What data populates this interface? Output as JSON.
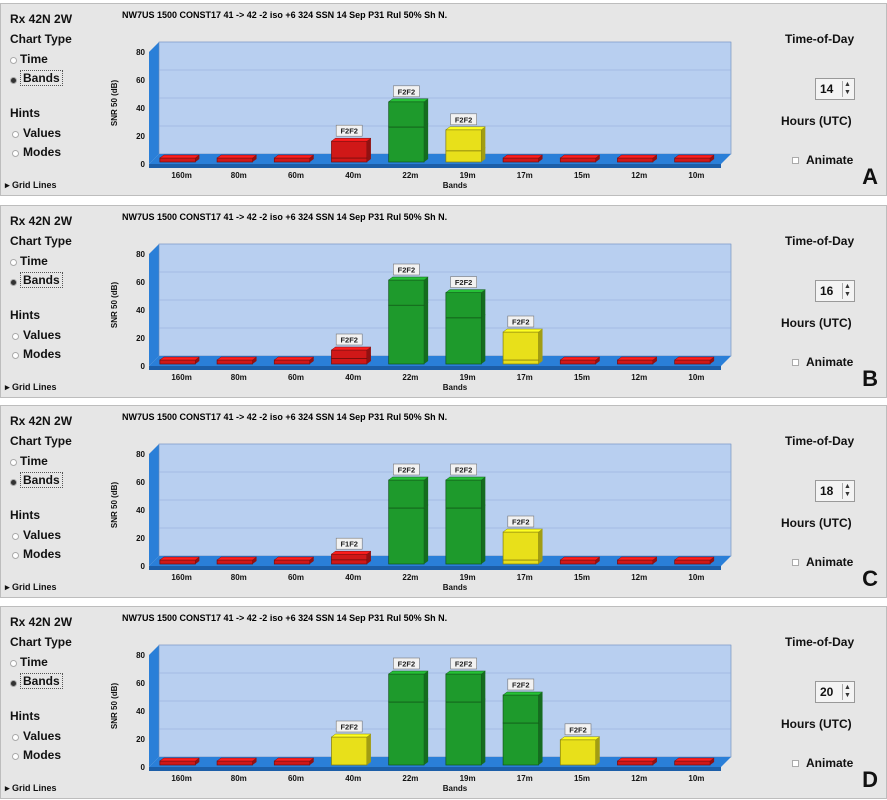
{
  "bands": [
    "160m",
    "80m",
    "60m",
    "40m",
    "22m",
    "19m",
    "17m",
    "15m",
    "12m",
    "10m"
  ],
  "labels": {
    "rx": "Rx 42N 2W",
    "chart_type": "Chart Type",
    "time": "Time",
    "bands_opt": "Bands",
    "hints": "Hints",
    "values": "Values",
    "modes": "Modes",
    "grid_lines": "Grid Lines",
    "time_of_day": "Time-of-Day",
    "hours_utc": "Hours (UTC)",
    "animate": "Animate",
    "xlabel": "Bands",
    "ylabel": "SNR 50 (dB)",
    "y_ticks": [
      "0",
      "20",
      "40",
      "60",
      "80"
    ]
  },
  "panels": [
    {
      "letter": "A",
      "hour": "14",
      "title": "NW7US 1500 CONST17 41 -> 42 -2 iso +6 324 SSN 14 Sep P31 Rul 50% Sh N."
    },
    {
      "letter": "B",
      "hour": "16",
      "title": "NW7US 1500 CONST17 41 -> 42 -2 iso +6 324 SSN 14 Sep P31 Rul 50% Sh N."
    },
    {
      "letter": "C",
      "hour": "18",
      "title": "NW7US 1500 CONST17 41 -> 42 -2 iso +6 324 SSN 14 Sep P31 Rul 50% Sh N."
    },
    {
      "letter": "D",
      "hour": "20",
      "title": "NW7US 1500 CONST17 41 -> 42 -2 iso +6 324 SSN 14 Sep P31 Rul 50% Sh N."
    }
  ],
  "colors": {
    "red": "#d01818",
    "green": "#1e9a2c",
    "yellow": "#e8e01a",
    "plot_bg": "#b8cff0",
    "floor": "#2a7fd8"
  },
  "chart_data": [
    {
      "type": "bar",
      "title": "NW7US 1500 CONST17 41 -> 42 -2 iso +6 324 SSN 14 Sep P31 Rul 50% Sh N.",
      "xlabel": "Bands",
      "ylabel": "SNR 50 (dB)",
      "ylim": [
        0,
        80
      ],
      "categories": [
        "160m",
        "80m",
        "60m",
        "40m",
        "22m",
        "19m",
        "17m",
        "15m",
        "12m",
        "10m"
      ],
      "series": [
        {
          "values": [
            2,
            2,
            2,
            2,
            25,
            8,
            2,
            2,
            2,
            2
          ]
        },
        {
          "values": [
            0,
            0,
            0,
            12,
            18,
            15,
            0,
            0,
            0,
            0
          ]
        }
      ],
      "colors": [
        "red",
        "red",
        "red",
        "red",
        "green",
        "yellow",
        "red",
        "red",
        "red",
        "red"
      ],
      "hints": [
        "",
        "",
        "",
        "F2F2",
        "F2F2",
        "F2F2",
        "",
        "",
        "",
        ""
      ]
    },
    {
      "type": "bar",
      "title": "NW7US 1500 CONST17 41 -> 42 -2 iso +6 324 SSN 14 Sep P31 Rul 50% Sh N.",
      "xlabel": "Bands",
      "ylabel": "SNR 50 (dB)",
      "ylim": [
        0,
        80
      ],
      "categories": [
        "160m",
        "80m",
        "60m",
        "40m",
        "22m",
        "19m",
        "17m",
        "15m",
        "12m",
        "10m"
      ],
      "series": [
        {
          "values": [
            2,
            2,
            2,
            4,
            42,
            33,
            2,
            2,
            2,
            2
          ]
        },
        {
          "values": [
            0,
            0,
            0,
            6,
            18,
            18,
            20,
            0,
            0,
            0
          ]
        }
      ],
      "colors": [
        "red",
        "red",
        "red",
        "red",
        "green",
        "green",
        "yellow",
        "red",
        "red",
        "red"
      ],
      "hints": [
        "",
        "",
        "",
        "F2F2",
        "F2F2",
        "F2F2",
        "F2F2",
        "",
        "",
        ""
      ]
    },
    {
      "type": "bar",
      "title": "NW7US 1500 CONST17 41 -> 42 -2 iso +6 324 SSN 14 Sep P31 Rul 50% Sh N.",
      "xlabel": "Bands",
      "ylabel": "SNR 50 (dB)",
      "ylim": [
        0,
        80
      ],
      "categories": [
        "160m",
        "80m",
        "60m",
        "40m",
        "22m",
        "19m",
        "17m",
        "15m",
        "12m",
        "10m"
      ],
      "series": [
        {
          "values": [
            2,
            2,
            2,
            3,
            40,
            40,
            2,
            2,
            2,
            2
          ]
        },
        {
          "values": [
            0,
            0,
            0,
            4,
            20,
            20,
            20,
            0,
            0,
            0
          ]
        }
      ],
      "colors": [
        "red",
        "red",
        "red",
        "red",
        "green",
        "green",
        "yellow",
        "red",
        "red",
        "red"
      ],
      "hints": [
        "",
        "",
        "",
        "F1F2",
        "F2F2",
        "F2F2",
        "F2F2",
        "",
        "",
        ""
      ]
    },
    {
      "type": "bar",
      "title": "NW7US 1500 CONST17 41 -> 42 -2 iso +6 324 SSN 14 Sep P31 Rul 50% Sh N.",
      "xlabel": "Bands",
      "ylabel": "SNR 50 (dB)",
      "ylim": [
        0,
        80
      ],
      "categories": [
        "160m",
        "80m",
        "60m",
        "40m",
        "22m",
        "19m",
        "17m",
        "15m",
        "12m",
        "10m"
      ],
      "series": [
        {
          "values": [
            2,
            2,
            2,
            20,
            45,
            45,
            30,
            18,
            2,
            2
          ]
        },
        {
          "values": [
            0,
            0,
            0,
            0,
            20,
            20,
            20,
            0,
            0,
            0
          ]
        }
      ],
      "colors": [
        "red",
        "red",
        "red",
        "yellow",
        "green",
        "green",
        "green",
        "yellow",
        "red",
        "red"
      ],
      "hints": [
        "",
        "",
        "",
        "F2F2",
        "F2F2",
        "F2F2",
        "F2F2",
        "F2F2",
        "",
        ""
      ]
    }
  ]
}
